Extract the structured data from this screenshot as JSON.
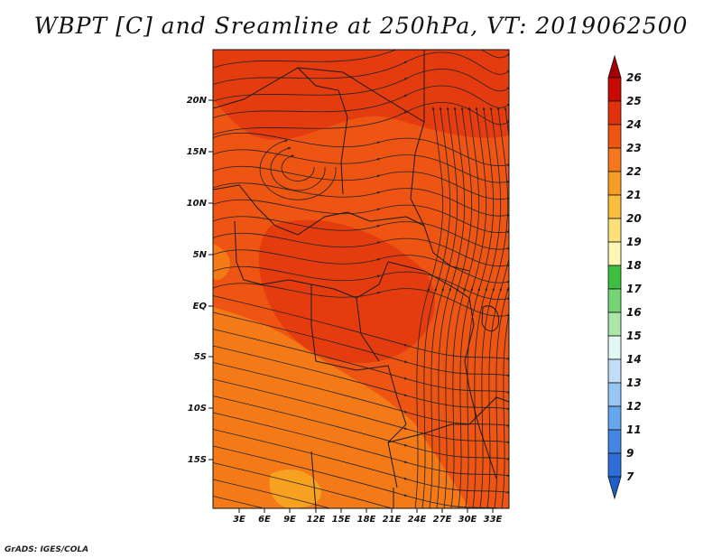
{
  "title": "WBPT [C] and Sreamline at 250hPa, VT: 2019062500",
  "credit": "GrADS: IGES/COLA",
  "map": {
    "lat_ticks": [
      "20N",
      "15N",
      "10N",
      "5N",
      "EQ",
      "5S",
      "10S",
      "15S"
    ],
    "lon_ticks": [
      "3E",
      "6E",
      "9E",
      "12E",
      "15E",
      "18E",
      "21E",
      "24E",
      "27E",
      "30E",
      "33E"
    ],
    "colors": {
      "field_base": "#ee5412",
      "field_hot": "#e23a10",
      "field_warm": "#f47e1a",
      "field_cool": "#f7a522",
      "streamline": "#222222",
      "border": "#1a1a1a"
    }
  },
  "colorbar": {
    "labels": [
      "26",
      "25",
      "24",
      "23",
      "22",
      "21",
      "20",
      "19",
      "18",
      "17",
      "16",
      "15",
      "14",
      "13",
      "12",
      "11",
      "9",
      "7"
    ],
    "colors": [
      "#a50000",
      "#c80a00",
      "#e0320d",
      "#ee5512",
      "#f6781c",
      "#f89d24",
      "#fbbd3e",
      "#fde07a",
      "#fff6b4",
      "#3fbf3f",
      "#74d474",
      "#aae8aa",
      "#e1f8f5",
      "#c1def8",
      "#96c6f4",
      "#66a6ec",
      "#4386e1",
      "#2d6fd8",
      "#1f5ec9"
    ]
  }
}
